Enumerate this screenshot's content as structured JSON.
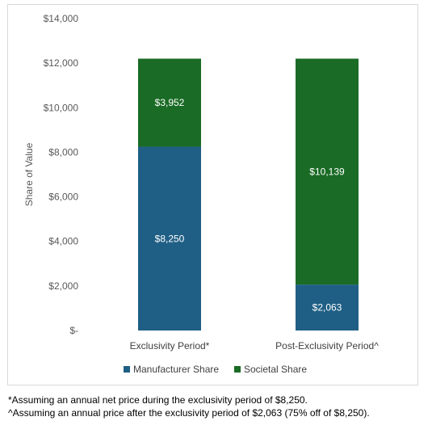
{
  "chart_data": {
    "type": "bar",
    "stacked": true,
    "categories": [
      "Exclusivity Period*",
      "Post-Exclusivity Period^"
    ],
    "series": [
      {
        "name": "Manufacturer Share",
        "values": [
          8250,
          2063
        ],
        "labels": [
          "$8,250",
          "$2,063"
        ],
        "color": "#1f5f85"
      },
      {
        "name": "Societal Share",
        "values": [
          3952,
          10139
        ],
        "labels": [
          "$3,952",
          "$10,139"
        ],
        "color": "#1a6b25"
      }
    ],
    "ylabel": "Share of Value",
    "ylim": [
      0,
      14000
    ],
    "yticks": [
      0,
      2000,
      4000,
      6000,
      8000,
      10000,
      12000,
      14000
    ],
    "ytick_labels": [
      "$-",
      "$2,000",
      "$4,000",
      "$6,000",
      "$8,000",
      "$10,000",
      "$12,000",
      "$14,000"
    ],
    "grid": false,
    "legend_position": "bottom"
  },
  "footnotes": [
    "*Assuming an annual net price during the exclusivity period of $8,250.",
    "^Assuming an annual price after the exclusivity period of $2,063 (75% off of $8,250)."
  ]
}
